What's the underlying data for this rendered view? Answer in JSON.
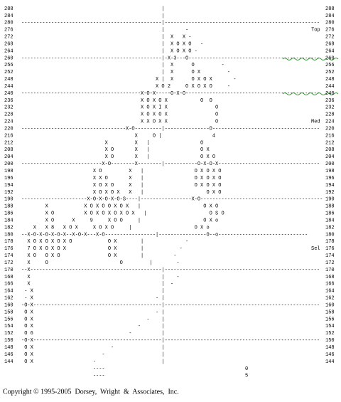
{
  "rows": [
    {
      "price": "288",
      "content": "                                               |"
    },
    {
      "price": "284",
      "content": "                                               |"
    },
    {
      "price": "280",
      "content": "-----------------------------------------------|----------------------------------------------------"
    },
    {
      "price": "276",
      "content": "                                               |       -",
      "note": "Top"
    },
    {
      "price": "272",
      "content": "                                               |  X   X -"
    },
    {
      "price": "268",
      "content": "                                               |  X O X O   -"
    },
    {
      "price": "264",
      "content": "                                               |  X O X O -"
    },
    {
      "price": "260",
      "content": "-----------------------------------------------|-X-3---O--------------------------------------------"
    },
    {
      "price": "256",
      "content": "                                               |  X      O         -"
    },
    {
      "price": "252",
      "content": "                                               |  X      O X         -"
    },
    {
      "price": "248",
      "content": "                                             X |  X      O X O X       -"
    },
    {
      "price": "244",
      "content": "                                             X O 2     O X O X O     -"
    },
    {
      "price": "240",
      "content": "----------------------------------------X-O-X-----O-X-O---------------------------------------------"
    },
    {
      "price": "236",
      "content": "                                        X O X O X           O  O"
    },
    {
      "price": "232",
      "content": "                                        X O X I X                O"
    },
    {
      "price": "228",
      "content": "                                        X O X O X                O"
    },
    {
      "price": "224",
      "content": "                                        X X O X X                O",
      "note": "Med"
    },
    {
      "price": "220",
      "content": "-----------------------------------X-O---------|---------------O------------------------------------"
    },
    {
      "price": "216",
      "content": "                                      X     O |                 4"
    },
    {
      "price": "212",
      "content": "                            X         X   |                 O"
    },
    {
      "price": "208",
      "content": "                            X O       X   |                 O X"
    },
    {
      "price": "204",
      "content": "                            X O       X   |                 O X O"
    },
    {
      "price": "200",
      "content": "---------------------------X-O--------X--------|-----------O-X-O-X----------------------------------"
    },
    {
      "price": "198",
      "content": "                        X O         X   |                 O X O X O"
    },
    {
      "price": "196",
      "content": "                        X X O       X   |                 O X O X O"
    },
    {
      "price": "194",
      "content": "                        X O X O     X   |                 O X O X O"
    },
    {
      "price": "192",
      "content": "                        X O X O X   X   |                     O X O"
    },
    {
      "price": "190",
      "content": "----------------------X-O-X-O-X-O-S----|-----------------X-O-----------------------------------------"
    },
    {
      "price": "188",
      "content": "        X            X O X O O X O X   |                     O X O"
    },
    {
      "price": "186",
      "content": "        X O          X O X O X O X O X   |                     O S O"
    },
    {
      "price": "184",
      "content": "        X O      X     9     X O O     |                     O X o"
    },
    {
      "price": "182",
      "content": "    X   X 8   X O X     X O X O     |                     O X o"
    },
    {
      "price": "180",
      "content": "--X-O-X-O-X-O-X--X-O-X---X-O-----------------|----------------O--o------------------------------"
    },
    {
      "price": "178",
      "content": "  X O X O X O X O            O X        |              -"
    },
    {
      "price": "176",
      "content": "  7 O X O X O X              O X        |            -",
      "note": "Sel"
    },
    {
      "price": "174",
      "content": "  X O   O X O                O X        |          -"
    },
    {
      "price": "172",
      "content": "  X     O                        O         |        -"
    },
    {
      "price": "170",
      "content": "--X--------------------------------------------|----------------------------------------------------"
    },
    {
      "price": "168",
      "content": "  X                                            |    -"
    },
    {
      "price": "166",
      "content": "  X                                            |  -"
    },
    {
      "price": "164",
      "content": " - X                                           |"
    },
    {
      "price": "162",
      "content": " - X                                         - |"
    },
    {
      "price": "160",
      "content": "-O-X-------------------------------------------|----------------------------------------------------"
    },
    {
      "price": "158",
      "content": " O X                                         - |"
    },
    {
      "price": "156",
      "content": " O X                                      -    |"
    },
    {
      "price": "154",
      "content": " O X                                   -       |"
    },
    {
      "price": "152",
      "content": " O 6                                -          |"
    },
    {
      "price": "150",
      "content": "-O-X-------------------------------------------|----------------------------------------------------"
    },
    {
      "price": "148",
      "content": " O X                          -                |"
    },
    {
      "price": "146",
      "content": " O X                       -                   |"
    },
    {
      "price": "144",
      "content": " O X                    -                      |"
    }
  ],
  "footer": [
    "                        ----                                               0",
    "                        ----                                               5"
  ],
  "copyright": "Copyright © 1995-2005  Dorsey,  Wright  &  Associates,  Inc."
}
